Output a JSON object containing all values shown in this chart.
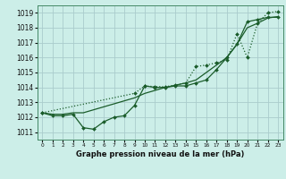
{
  "bg_color": "#cceee8",
  "grid_color": "#aacccc",
  "line_color": "#1a5c2a",
  "title": "Graphe pression niveau de la mer (hPa)",
  "xlim": [
    -0.5,
    23.5
  ],
  "ylim": [
    1010.5,
    1019.5
  ],
  "yticks": [
    1011,
    1012,
    1013,
    1014,
    1015,
    1016,
    1017,
    1018,
    1019
  ],
  "xticks": [
    0,
    1,
    2,
    3,
    4,
    5,
    6,
    7,
    8,
    9,
    10,
    11,
    12,
    13,
    14,
    15,
    16,
    17,
    18,
    19,
    20,
    21,
    22,
    23
  ],
  "line1_solid": {
    "x": [
      0,
      1,
      2,
      3,
      4,
      5,
      6,
      7,
      8,
      9,
      10,
      11,
      12,
      13,
      14,
      15,
      16,
      17,
      18,
      19,
      20,
      21,
      22,
      23
    ],
    "y": [
      1012.3,
      1012.2,
      1012.2,
      1012.3,
      1012.3,
      1012.5,
      1012.7,
      1012.9,
      1013.1,
      1013.3,
      1013.6,
      1013.8,
      1014.0,
      1014.15,
      1014.3,
      1014.5,
      1015.0,
      1015.5,
      1016.0,
      1016.9,
      1018.0,
      1018.3,
      1018.65,
      1018.75
    ]
  },
  "line2_markers": {
    "x": [
      0,
      1,
      2,
      3,
      4,
      5,
      6,
      7,
      8,
      9,
      10,
      11,
      12,
      13,
      14,
      15,
      16,
      17,
      18,
      19,
      20,
      21,
      22,
      23
    ],
    "y": [
      1012.3,
      1012.1,
      1012.1,
      1012.2,
      1011.3,
      1011.2,
      1011.7,
      1012.0,
      1012.1,
      1012.8,
      1014.1,
      1014.0,
      1014.0,
      1014.1,
      1014.1,
      1014.3,
      1014.5,
      1015.2,
      1016.0,
      1016.9,
      1018.4,
      1018.55,
      1018.7,
      1018.7
    ]
  },
  "line3_dotted": {
    "x": [
      0,
      9,
      10,
      11,
      12,
      13,
      14,
      15,
      16,
      17,
      18,
      19,
      20,
      21,
      22,
      23
    ],
    "y": [
      1012.3,
      1013.6,
      1014.1,
      1014.05,
      1014.05,
      1014.15,
      1014.3,
      1015.4,
      1015.5,
      1015.65,
      1015.85,
      1017.6,
      1016.0,
      1018.3,
      1019.0,
      1019.1
    ]
  }
}
